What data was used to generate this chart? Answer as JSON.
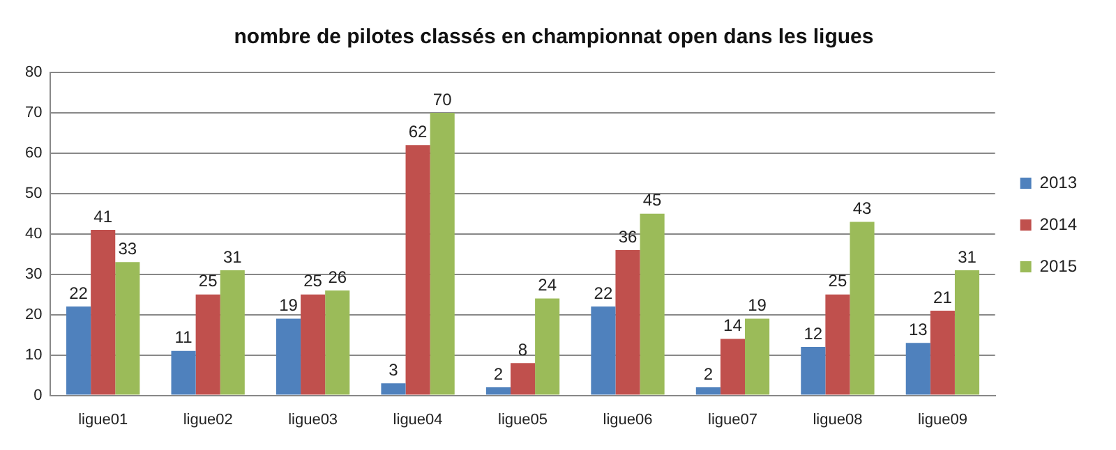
{
  "chart_data": {
    "type": "bar",
    "title": "nombre de pilotes classés en championnat open dans les ligues",
    "categories": [
      "ligue01",
      "ligue02",
      "ligue03",
      "ligue04",
      "ligue05",
      "ligue06",
      "ligue07",
      "ligue08",
      "ligue09"
    ],
    "series": [
      {
        "name": "2013",
        "color": "#4f81bd",
        "values": [
          22,
          11,
          19,
          3,
          2,
          22,
          2,
          12,
          13
        ]
      },
      {
        "name": "2014",
        "color": "#c0504d",
        "values": [
          41,
          25,
          25,
          62,
          8,
          36,
          14,
          25,
          21
        ]
      },
      {
        "name": "2015",
        "color": "#9bbb59",
        "values": [
          33,
          31,
          26,
          70,
          24,
          45,
          19,
          43,
          31
        ]
      }
    ],
    "ylim": [
      0,
      80
    ],
    "yticks": [
      0,
      10,
      20,
      30,
      40,
      50,
      60,
      70,
      80
    ],
    "grid": "y",
    "legend": "right",
    "data_labels": true
  }
}
